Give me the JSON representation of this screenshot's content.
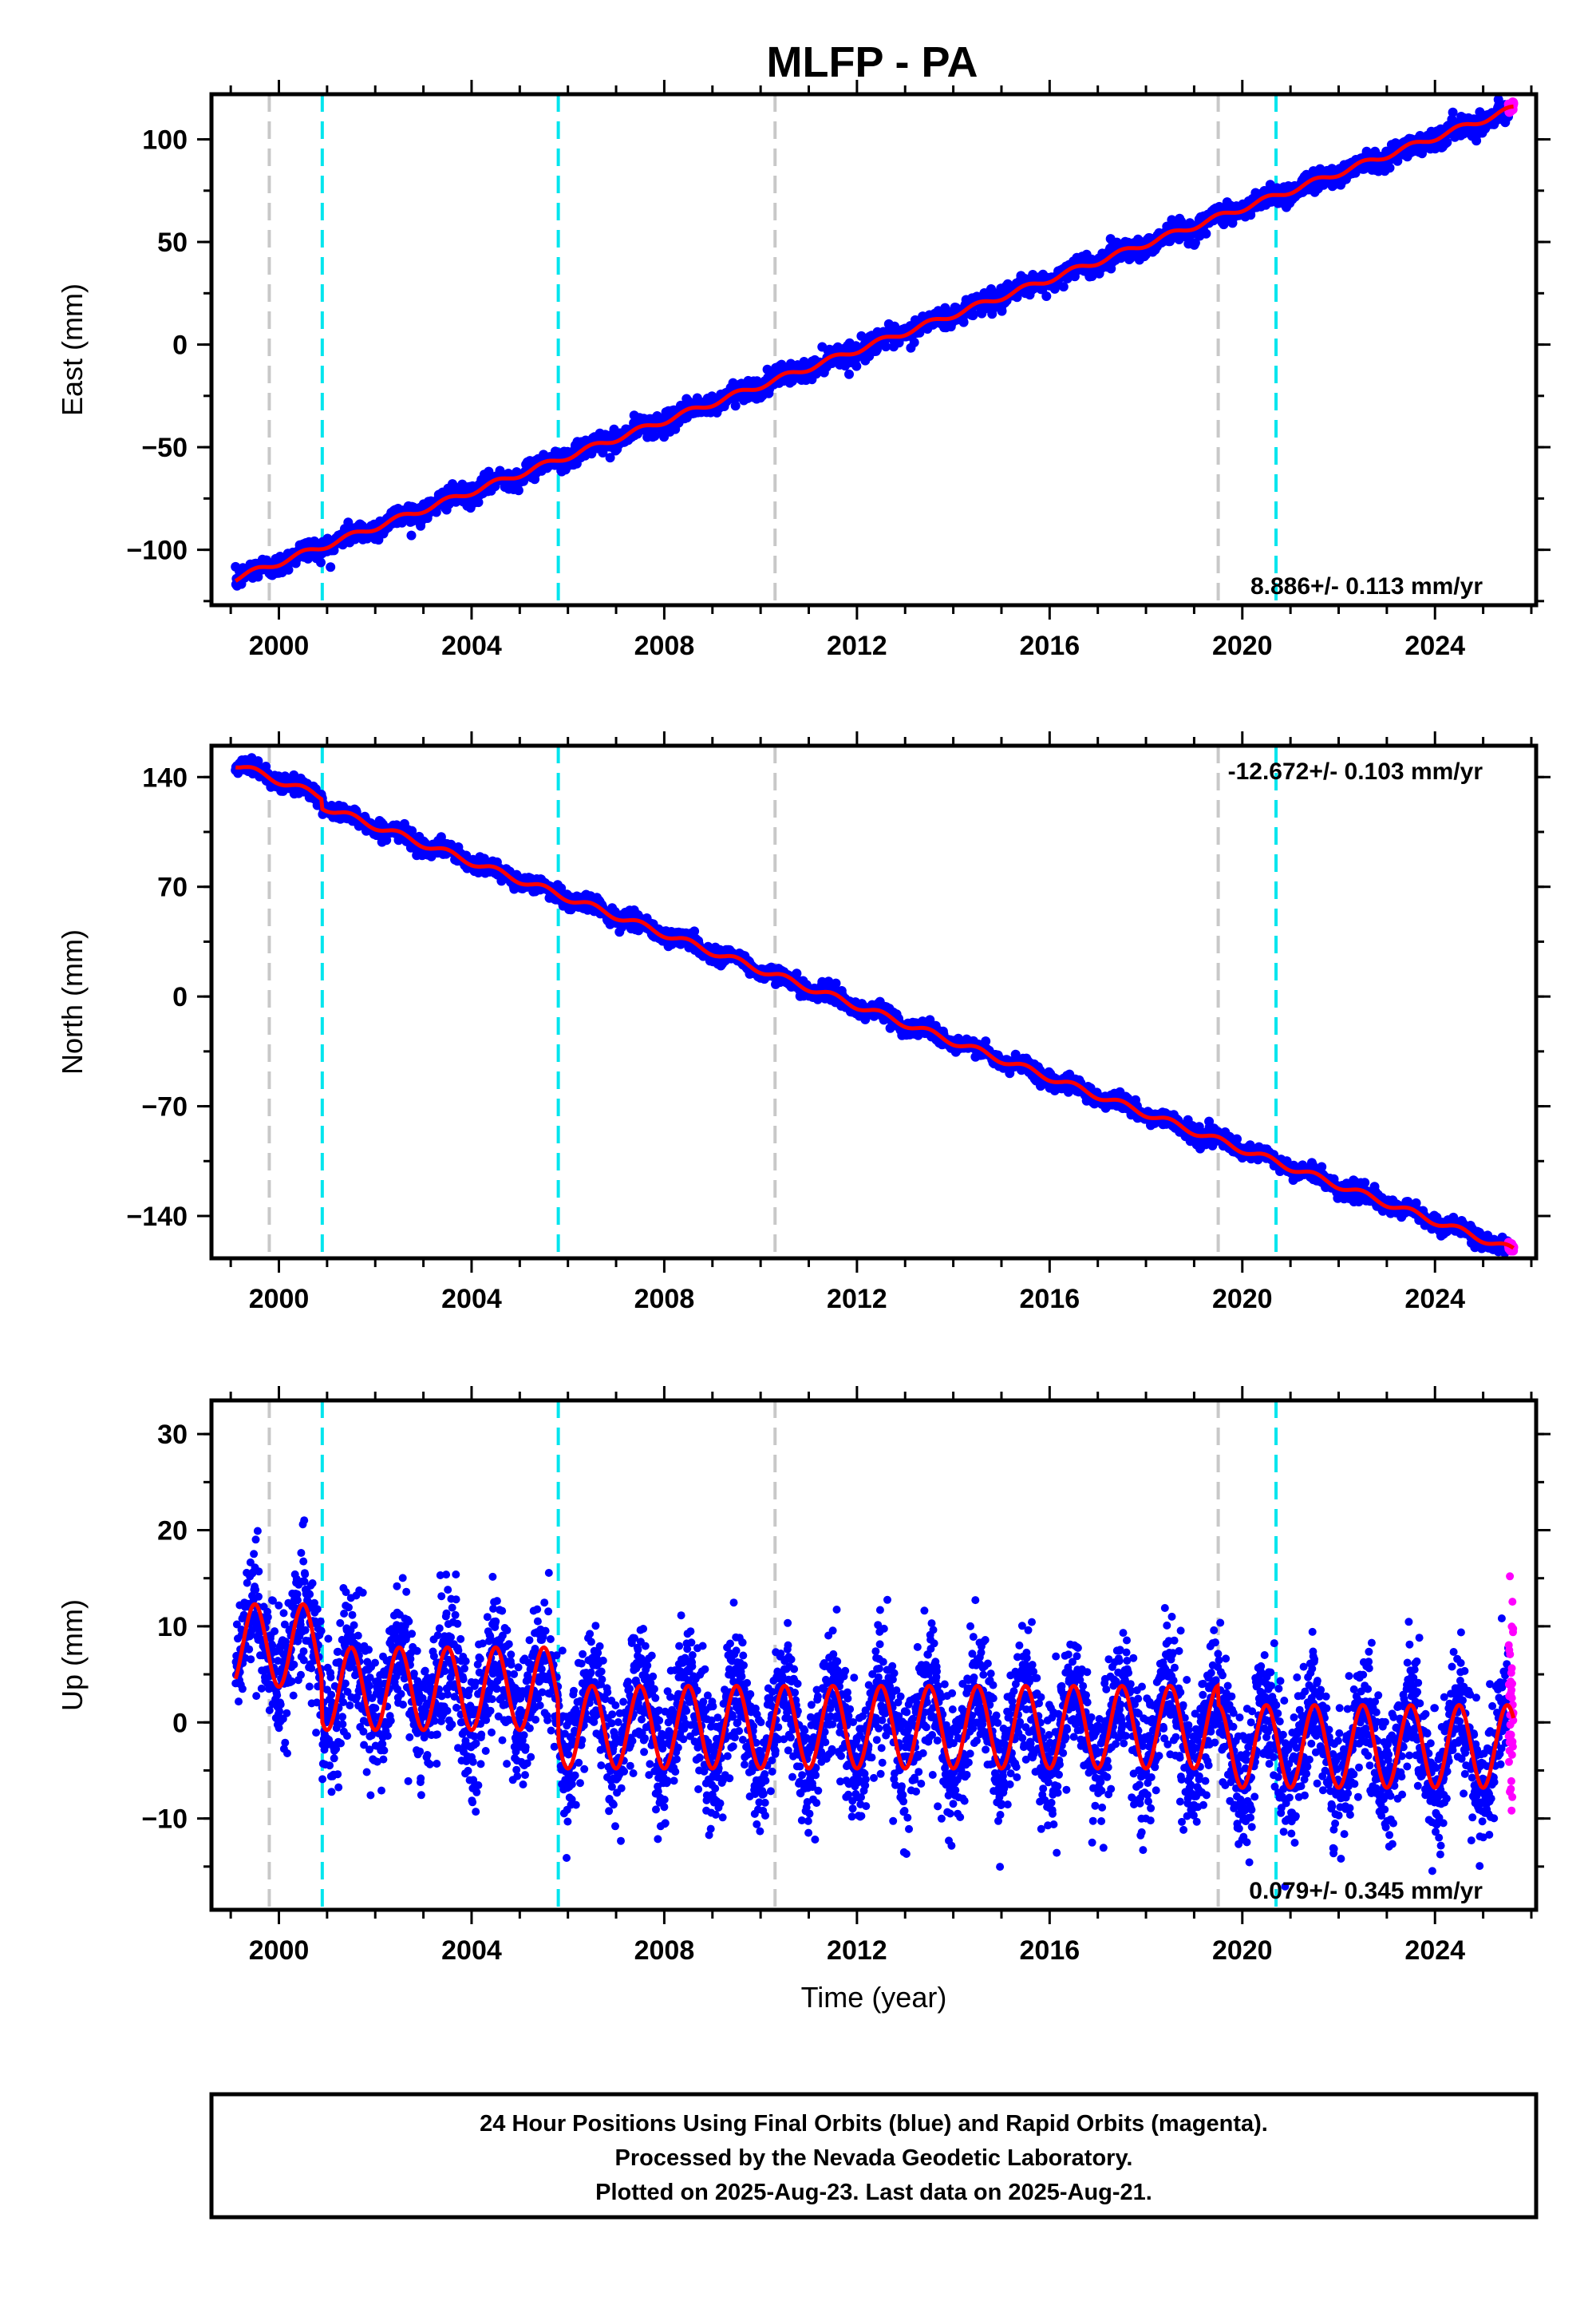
{
  "figure": {
    "title": "MLFP - PA",
    "footer": [
      "24 Hour Positions Using Final Orbits (blue) and Rapid Orbits (magenta).",
      "Processed by the Nevada Geodetic Laboratory.",
      "Plotted on 2025-Aug-23. Last data on 2025-Aug-21."
    ],
    "colors": {
      "final_orbits": "#0000ff",
      "rapid_orbits": "#ff00ff",
      "model_fit": "#ff0000",
      "equipment_change_line": "#c8c8c8",
      "earthquake_line": "#00e5ee",
      "frame": "#000000"
    }
  },
  "chart_data": [
    {
      "type": "scatter",
      "ylabel": "East (mm)",
      "xlabel": "",
      "xlim": [
        1998.6,
        2026.1
      ],
      "ylim": [
        -127,
        122
      ],
      "x_ticks": [
        "2000",
        "2004",
        "2008",
        "2012",
        "2016",
        "2020",
        "2024"
      ],
      "y_ticks": [
        "100",
        "50",
        "0",
        "−50",
        "−100"
      ],
      "y_tick_values": [
        100,
        50,
        0,
        -50,
        -100
      ],
      "rate_label": "8.886+/- 0.113 mm/yr",
      "rate_position": "bottom-right",
      "trend": {
        "start_year": 1999.1,
        "end_year": 2025.63,
        "start_mm": -114,
        "end_mm": 115,
        "rate_mm_per_yr": 8.886
      },
      "seasonal_amplitude_mm": 1.5,
      "scatter_mm": 2.5,
      "steps": [],
      "grey_lines": [
        1999.8,
        2010.3,
        2019.5
      ],
      "cyan_lines": [
        2000.9,
        2005.8,
        2020.7
      ]
    },
    {
      "type": "scatter",
      "ylabel": "North (mm)",
      "xlabel": "",
      "xlim": [
        1998.6,
        2026.1
      ],
      "ylim": [
        -167,
        160
      ],
      "x_ticks": [
        "2000",
        "2004",
        "2008",
        "2012",
        "2016",
        "2020",
        "2024"
      ],
      "y_ticks": [
        "140",
        "70",
        "0",
        "−70",
        "−140"
      ],
      "y_tick_values": [
        140,
        70,
        0,
        -70,
        -140
      ],
      "rate_label": "-12.672+/- 0.103 mm/yr",
      "rate_position": "top-right",
      "trend": {
        "start_year": 1999.1,
        "end_year": 2025.63,
        "start_mm": 148,
        "end_mm": -156,
        "rate_mm_per_yr": -12.672
      },
      "seasonal_amplitude_mm": 2.2,
      "scatter_mm": 2.5,
      "steps": [
        {
          "year": 2000.9,
          "offset_mm": -6
        }
      ],
      "grey_lines": [
        1999.8,
        2010.3,
        2019.5
      ],
      "cyan_lines": [
        2000.9,
        2005.8,
        2020.7
      ]
    },
    {
      "type": "scatter",
      "ylabel": "Up (mm)",
      "xlabel": "Time (year)",
      "xlim": [
        1998.6,
        2026.1
      ],
      "ylim": [
        -19.5,
        33.5
      ],
      "x_ticks": [
        "2000",
        "2004",
        "2008",
        "2012",
        "2016",
        "2020",
        "2024"
      ],
      "y_ticks": [
        "30",
        "20",
        "10",
        "0",
        "−10"
      ],
      "y_tick_values": [
        30,
        20,
        10,
        0,
        -10
      ],
      "rate_label": "0.079+/- 0.345 mm/yr",
      "rate_position": "bottom-right",
      "mean_levels": [
        {
          "from": 1999.1,
          "to": 2000.9,
          "mean_mm": 8
        },
        {
          "from": 2000.9,
          "to": 2005.8,
          "mean_mm": 3.5
        },
        {
          "from": 2005.8,
          "to": 2019.5,
          "mean_mm": -0.5
        },
        {
          "from": 2019.5,
          "to": 2025.63,
          "mean_mm": -2.5
        }
      ],
      "seasonal_amplitude_mm": 4.3,
      "scatter_mm": 3.3,
      "grey_lines": [
        1999.8,
        2010.3,
        2019.5
      ],
      "cyan_lines": [
        2000.9,
        2005.8,
        2020.7
      ]
    }
  ]
}
